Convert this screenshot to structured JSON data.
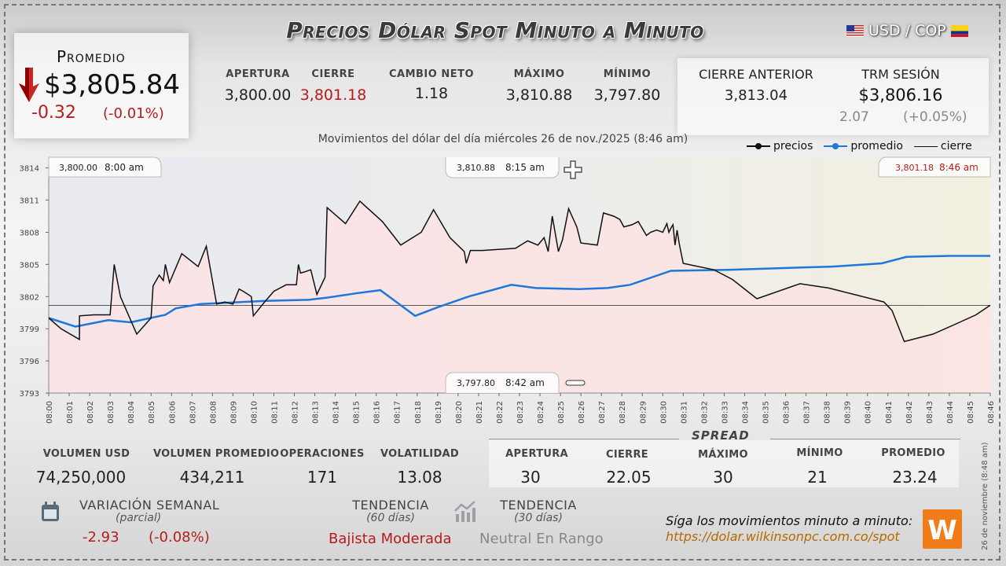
{
  "title": "Precios Dólar Spot Minuto a Minuto",
  "pair": "USD / COP",
  "promedio": {
    "label": "Promedio",
    "value": "$3,805.84",
    "change": "-0.32",
    "pct": "(-0.01%)",
    "arrow": "down-arrow-icon"
  },
  "stats": [
    {
      "label": "APERTURA",
      "value": "3,800.00",
      "color": "#222222"
    },
    {
      "label": "CIERRE",
      "value": "3,801.18",
      "color": "#b71c1c"
    },
    {
      "label": "CAMBIO NETO",
      "value": "1.18",
      "color": "#222222"
    },
    {
      "label": "MÁXIMO",
      "value": "3,810.88",
      "color": "#222222"
    },
    {
      "label": "MÍNIMO",
      "value": "3,797.80",
      "color": "#222222"
    }
  ],
  "previous": {
    "cierre_label": "CIERRE ANTERIOR",
    "cierre_value": "3,813.04",
    "trm_label": "TRM SESIÓN",
    "trm_value": "$3,806.16",
    "trm_change": "2.07",
    "trm_pct": "(+0.05%)"
  },
  "subtitle": "Movimientos del dólar del día miércoles 26 de nov./2025 (8:46 am)",
  "chart_data": {
    "type": "line",
    "title": "Movimientos del dólar del día miércoles 26 de nov./2025 (8:46 am)",
    "xlabel": "",
    "ylabel": "",
    "ylim": [
      3793,
      3815
    ],
    "yticks": [
      3793,
      3796,
      3799,
      3802,
      3805,
      3808,
      3811,
      3814
    ],
    "xticks": [
      "08:00",
      "08:01",
      "08:02",
      "08:03",
      "08:04",
      "08:05",
      "08:06",
      "08:07",
      "08:08",
      "08:09",
      "08:10",
      "08:11",
      "08:12",
      "08:13",
      "08:14",
      "08:15",
      "08:16",
      "08:17",
      "08:18",
      "08:19",
      "08:20",
      "08:21",
      "08:22",
      "08:23",
      "08:24",
      "08:25",
      "08:26",
      "08:27",
      "08:28",
      "08:29",
      "08:30",
      "08:31",
      "08:32",
      "08:33",
      "08:34",
      "08:35",
      "08:36",
      "08:37",
      "08:38",
      "08:39",
      "08:40",
      "08:41",
      "08:42",
      "08:43",
      "08:44",
      "08:45",
      "08:46"
    ],
    "legend": [
      "precios",
      "promedio",
      "cierre"
    ],
    "legend_position": "top-right",
    "grid": false,
    "colors": {
      "precios": "#111111",
      "promedio": "#1e78dc",
      "cierre": "#444444",
      "fill": "#fde3e3"
    },
    "cierre_line": 3801.18,
    "series": [
      {
        "name": "precios",
        "points": [
          [
            0,
            3800.0
          ],
          [
            0.6,
            3799.0
          ],
          [
            1.5,
            3798.0
          ],
          [
            1.5,
            3800.2
          ],
          [
            2.2,
            3800.3
          ],
          [
            3,
            3800.3
          ],
          [
            3.2,
            3805
          ],
          [
            3.5,
            3802
          ],
          [
            4.3,
            3798.5
          ],
          [
            5,
            3800
          ],
          [
            5.1,
            3803
          ],
          [
            5.4,
            3804
          ],
          [
            5.6,
            3803.5
          ],
          [
            5.7,
            3805
          ],
          [
            5.9,
            3803.3
          ],
          [
            6.5,
            3806
          ],
          [
            7.3,
            3804.8
          ],
          [
            7.7,
            3806.7
          ],
          [
            8.2,
            3801.3
          ],
          [
            8.6,
            3801.5
          ],
          [
            9,
            3801.3
          ],
          [
            9.3,
            3802.7
          ],
          [
            9.5,
            3802.5
          ],
          [
            9.9,
            3802
          ],
          [
            10,
            3800.2
          ],
          [
            10.5,
            3801.4
          ],
          [
            11,
            3802.5
          ],
          [
            11.6,
            3803.1
          ],
          [
            12.1,
            3803.1
          ],
          [
            12.2,
            3805
          ],
          [
            12.3,
            3804.2
          ],
          [
            12.5,
            3804.3
          ],
          [
            12.8,
            3804.5
          ],
          [
            13.1,
            3802.2
          ],
          [
            13.5,
            3803.8
          ],
          [
            13.6,
            3810.3
          ],
          [
            14.5,
            3808.8
          ],
          [
            15.2,
            3810.9
          ],
          [
            16.3,
            3809
          ],
          [
            17.2,
            3806.8
          ],
          [
            18.2,
            3808
          ],
          [
            18.8,
            3810.1
          ],
          [
            19.6,
            3807.5
          ],
          [
            20.3,
            3806.2
          ],
          [
            20.4,
            3805.1
          ],
          [
            20.6,
            3806.3
          ],
          [
            21.2,
            3806.3
          ],
          [
            22.8,
            3806.5
          ],
          [
            23.4,
            3807.2
          ],
          [
            23.9,
            3806.8
          ],
          [
            24.2,
            3807.5
          ],
          [
            24.4,
            3806.2
          ],
          [
            24.6,
            3809.5
          ],
          [
            24.9,
            3806.2
          ],
          [
            25.1,
            3807.3
          ],
          [
            25.4,
            3810.2
          ],
          [
            25.8,
            3808.5
          ],
          [
            26,
            3807
          ],
          [
            26.8,
            3806.8
          ],
          [
            27.1,
            3809.8
          ],
          [
            27.6,
            3809.5
          ],
          [
            27.9,
            3809.2
          ],
          [
            28.1,
            3808.5
          ],
          [
            28.5,
            3808.7
          ],
          [
            28.8,
            3809
          ],
          [
            29.2,
            3807.7
          ],
          [
            29.4,
            3808
          ],
          [
            29.7,
            3808.2
          ],
          [
            30,
            3808
          ],
          [
            30.2,
            3808.8
          ],
          [
            30.3,
            3808
          ],
          [
            30.4,
            3808.4
          ],
          [
            30.5,
            3808.7
          ],
          [
            30.6,
            3806.8
          ],
          [
            30.7,
            3808.2
          ],
          [
            30.8,
            3807
          ],
          [
            31,
            3805.1
          ],
          [
            32.5,
            3804.5
          ],
          [
            33.4,
            3803.6
          ],
          [
            34.6,
            3801.8
          ],
          [
            36.7,
            3803.2
          ],
          [
            38.1,
            3802.8
          ],
          [
            40.8,
            3801.5
          ],
          [
            41.2,
            3800.7
          ],
          [
            41.8,
            3797.8
          ],
          [
            43.2,
            3798.5
          ],
          [
            44.5,
            3799.6
          ],
          [
            45.3,
            3800.3
          ],
          [
            46,
            3801.2
          ]
        ]
      },
      {
        "name": "promedio",
        "points": [
          [
            0,
            3800.0
          ],
          [
            1.3,
            3799.2
          ],
          [
            2.9,
            3799.8
          ],
          [
            4,
            3799.6
          ],
          [
            5.7,
            3800.3
          ],
          [
            6.2,
            3800.9
          ],
          [
            7.4,
            3801.3
          ],
          [
            10.6,
            3801.6
          ],
          [
            12.7,
            3801.7
          ],
          [
            13.6,
            3801.9
          ],
          [
            15,
            3802.3
          ],
          [
            16.2,
            3802.6
          ],
          [
            17.9,
            3800.2
          ],
          [
            19,
            3801
          ],
          [
            20.5,
            3802
          ],
          [
            22.6,
            3803.1
          ],
          [
            23.8,
            3802.8
          ],
          [
            25.9,
            3802.7
          ],
          [
            27.3,
            3802.8
          ],
          [
            28.4,
            3803.1
          ],
          [
            30.4,
            3804.4
          ],
          [
            33.2,
            3804.5
          ],
          [
            36.5,
            3804.7
          ],
          [
            38.3,
            3804.8
          ],
          [
            40.7,
            3805.1
          ],
          [
            41.9,
            3805.7
          ],
          [
            44,
            3805.8
          ],
          [
            46,
            3805.8
          ]
        ]
      }
    ],
    "annotations": [
      {
        "text": "3,800.00",
        "time": "8:00 am",
        "role": "apertura"
      },
      {
        "text": "3,810.88",
        "time": "8:15 am",
        "role": "maximo"
      },
      {
        "text": "3,801.18",
        "time": "8:46 am",
        "role": "cierre"
      },
      {
        "text": "3,797.80",
        "time": "8:42 am",
        "role": "minimo"
      }
    ]
  },
  "bottom_stats": [
    {
      "label": "VOLUMEN USD",
      "value": "74,250,000"
    },
    {
      "label": "VOLUMEN PROMEDIO",
      "value": "434,211"
    },
    {
      "label": "OPERACIONES",
      "value": "171"
    },
    {
      "label": "VOLATILIDAD",
      "value": "13.08"
    }
  ],
  "spread": {
    "title": "SPREAD",
    "items": [
      {
        "label": "APERTURA",
        "value": "30"
      },
      {
        "label": "CIERRE",
        "value": "22.05"
      },
      {
        "label": "MÁXIMO",
        "value": "30"
      },
      {
        "label": "MÍNIMO",
        "value": "21"
      },
      {
        "label": "PROMEDIO",
        "value": "23.24"
      }
    ]
  },
  "variacion": {
    "label": "VARIACIÓN SEMANAL",
    "sub": "(parcial)",
    "value": "-2.93",
    "pct": "(-0.08%)"
  },
  "tendencia60": {
    "label": "TENDENCIA",
    "sub": "(60 días)",
    "value": "Bajista Moderada"
  },
  "tendencia30": {
    "label": "TENDENCIA",
    "sub": "(30 días)",
    "value": "Neutral En Rango"
  },
  "footer": {
    "text": "Síga los movimientos minuto a minuto:",
    "link": "https://dolar.wilkinsonpc.com.co/spot",
    "vertical": "26 de noviembre (8:48 am)",
    "logo_text": "W"
  }
}
